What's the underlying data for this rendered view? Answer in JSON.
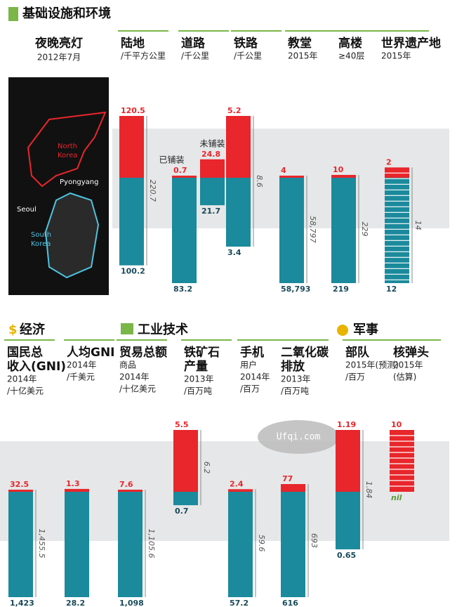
{
  "sections": [
    {
      "groups": [
        {
          "title": "基础设施和环境",
          "columns": [
            {
              "title": [
                "陆地"
              ],
              "subtitle": [
                "/千平方公里"
              ],
              "bars": [
                {
                  "north": 120.5,
                  "south": 100.2
                }
              ],
              "total": 220.7
            },
            {
              "title": [
                "道路"
              ],
              "subtitle": [
                "/千公里"
              ],
              "bars": [
                {
                  "note": "已铺装",
                  "north": 0.7,
                  "south": 83.2
                },
                {
                  "note": "未铺装",
                  "north": 24.8,
                  "south": 21.7
                }
              ]
            },
            {
              "title": [
                "铁路"
              ],
              "subtitle": [
                "/千公里"
              ],
              "bars": [
                {
                  "north": 5.2,
                  "south": 3.4
                }
              ],
              "total": 8.6
            },
            {
              "title": [
                "教堂"
              ],
              "subtitle": [
                "2015年"
              ],
              "bars": [
                {
                  "north": 4,
                  "south": {
                    "value": 58793,
                    "label": "58,793"
                  }
                }
              ],
              "total": {
                "value": 58797,
                "label": "58,797"
              }
            },
            {
              "title": [
                "高楼"
              ],
              "subtitle": [
                "≥40层"
              ],
              "bars": [
                {
                  "north": 10,
                  "south": 219
                }
              ],
              "total": 229
            },
            {
              "title": [
                "世界遗产地"
              ],
              "subtitle": [
                "2015年"
              ],
              "bars": [
                {
                  "north": 2,
                  "south": 12
                }
              ],
              "total": 14,
              "striped": true
            }
          ]
        }
      ],
      "map": {
        "title": [
          "夜晚亮灯"
        ],
        "subtitle": [
          "2012年7月"
        ],
        "labels": [
          "North",
          "Korea",
          "Pyongyang",
          "Seoul",
          "South",
          "Korea"
        ]
      }
    },
    {
      "groups": [
        {
          "title": "经济",
          "columns": [
            {
              "title": [
                "国民总",
                "收入(GNI)"
              ],
              "subtitle": [
                "2014年",
                "/十亿美元"
              ],
              "bars": [
                {
                  "north": 32.5,
                  "south": {
                    "value": 1423,
                    "label": "1,423"
                  }
                }
              ],
              "total": {
                "value": 1455.5,
                "label": "1,455.5"
              }
            },
            {
              "title": [
                "人均GNI"
              ],
              "subtitle": [
                "2014年",
                "/千美元"
              ],
              "bars": [
                {
                  "north": 1.3,
                  "south": 28.2
                }
              ]
            },
            {
              "title": [
                "贸易总额"
              ],
              "subtitle": [
                "商品",
                "2014年",
                "/十亿美元"
              ],
              "bars": [
                {
                  "north": 7.6,
                  "south": {
                    "value": 1098,
                    "label": "1,098"
                  }
                }
              ],
              "total": {
                "value": 1105.6,
                "label": "1,105.6"
              }
            }
          ]
        },
        {
          "title": "工业技术",
          "columns": [
            {
              "title": [
                "铁矿石",
                "产量"
              ],
              "subtitle": [
                "2013年",
                "/百万吨"
              ],
              "bars": [
                {
                  "north": 5.5,
                  "south": 0.7
                }
              ],
              "total": 6.2
            },
            {
              "title": [
                "手机"
              ],
              "subtitle": [
                "用户",
                "2014年",
                "/百万"
              ],
              "bars": [
                {
                  "north": 2.4,
                  "south": 57.2
                }
              ],
              "total": 59.6
            },
            {
              "title": [
                "二氧化碳",
                "排放"
              ],
              "subtitle": [
                "2013年",
                "/百万吨"
              ],
              "bars": [
                {
                  "north": 77,
                  "south": 616
                }
              ],
              "total": 693
            }
          ]
        },
        {
          "title": "军事",
          "columns": [
            {
              "title": [
                "部队"
              ],
              "subtitle": [
                "2015年(预测)",
                "/百万"
              ],
              "bars": [
                {
                  "north": 1.19,
                  "south": 0.65
                }
              ],
              "total": 1.84
            },
            {
              "title": [
                "核弹头"
              ],
              "subtitle": [
                "2015年",
                "(估算)"
              ],
              "bars": [
                {
                  "north": 10,
                  "south": {
                    "value": 0,
                    "label": "nil"
                  }
                }
              ],
              "striped": true
            }
          ]
        }
      ]
    }
  ],
  "watermark": "Ufqi.com"
}
